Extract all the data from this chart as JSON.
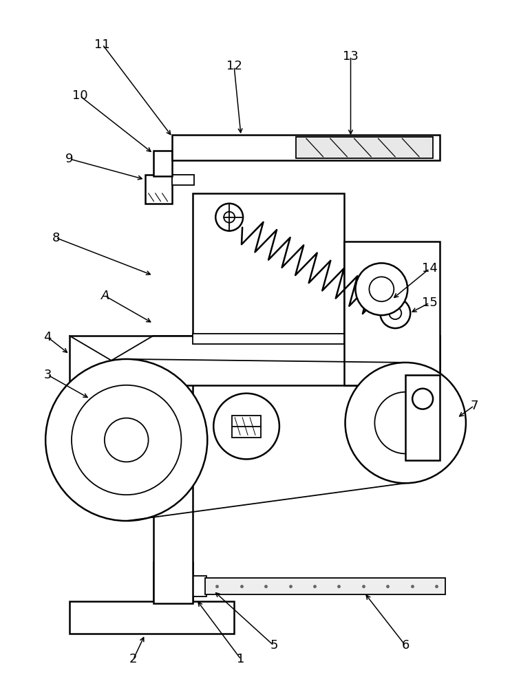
{
  "bg_color": "#ffffff",
  "lw": 1.3,
  "lw_thick": 1.8,
  "fig_width": 7.57,
  "fig_height": 10.0,
  "labels": [
    "1",
    "2",
    "3",
    "4",
    "5",
    "6",
    "7",
    "8",
    "9",
    "10",
    "11",
    "12",
    "13",
    "14",
    "15",
    "A"
  ]
}
